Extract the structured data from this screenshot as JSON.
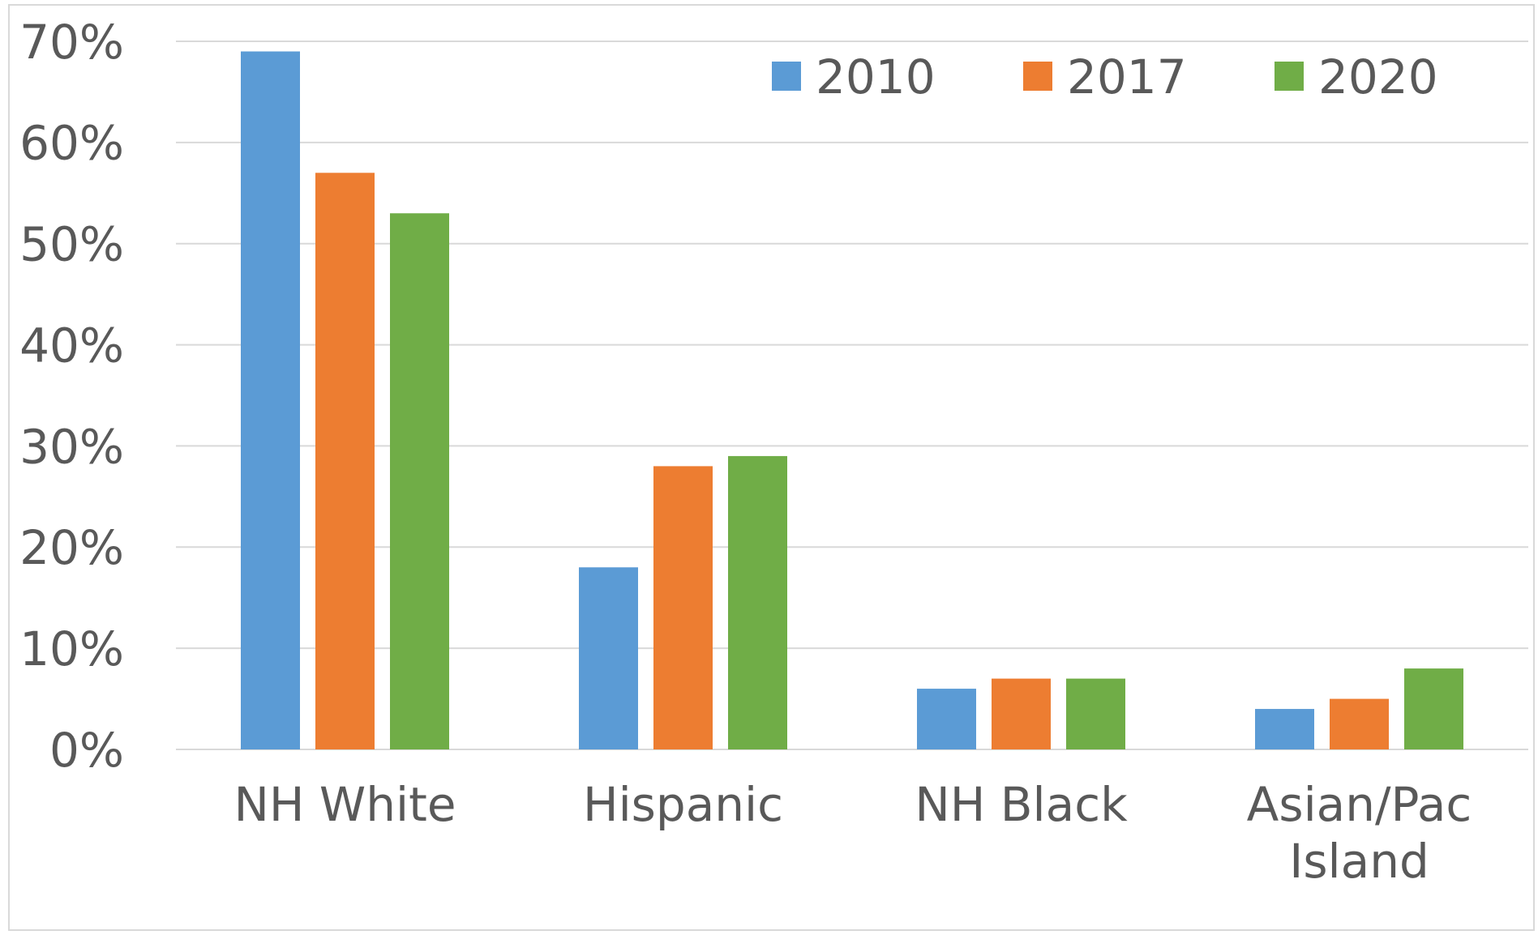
{
  "chart_data": {
    "type": "bar",
    "title": "",
    "xlabel": "",
    "ylabel": "",
    "categories": [
      [
        "NH White"
      ],
      [
        "Hispanic"
      ],
      [
        "NH Black"
      ],
      [
        "Asian/Pac",
        "Island"
      ]
    ],
    "series": [
      {
        "name": "2010",
        "color": "#5B9BD5",
        "values": [
          69,
          18,
          6,
          4
        ]
      },
      {
        "name": "2017",
        "color": "#ED7D31",
        "values": [
          57,
          28,
          7,
          5
        ]
      },
      {
        "name": "2020",
        "color": "#70AD47",
        "values": [
          53,
          29,
          7,
          8
        ]
      }
    ],
    "ylim": [
      0,
      70
    ],
    "yticks": [
      0,
      10,
      20,
      30,
      40,
      50,
      60,
      70
    ],
    "ytick_labels": [
      "0%",
      "10%",
      "20%",
      "30%",
      "40%",
      "50%",
      "60%",
      "70%"
    ],
    "grid": true,
    "legend": "top-right",
    "gridline_color": "#D9D9D9",
    "text_color": "#595959"
  }
}
